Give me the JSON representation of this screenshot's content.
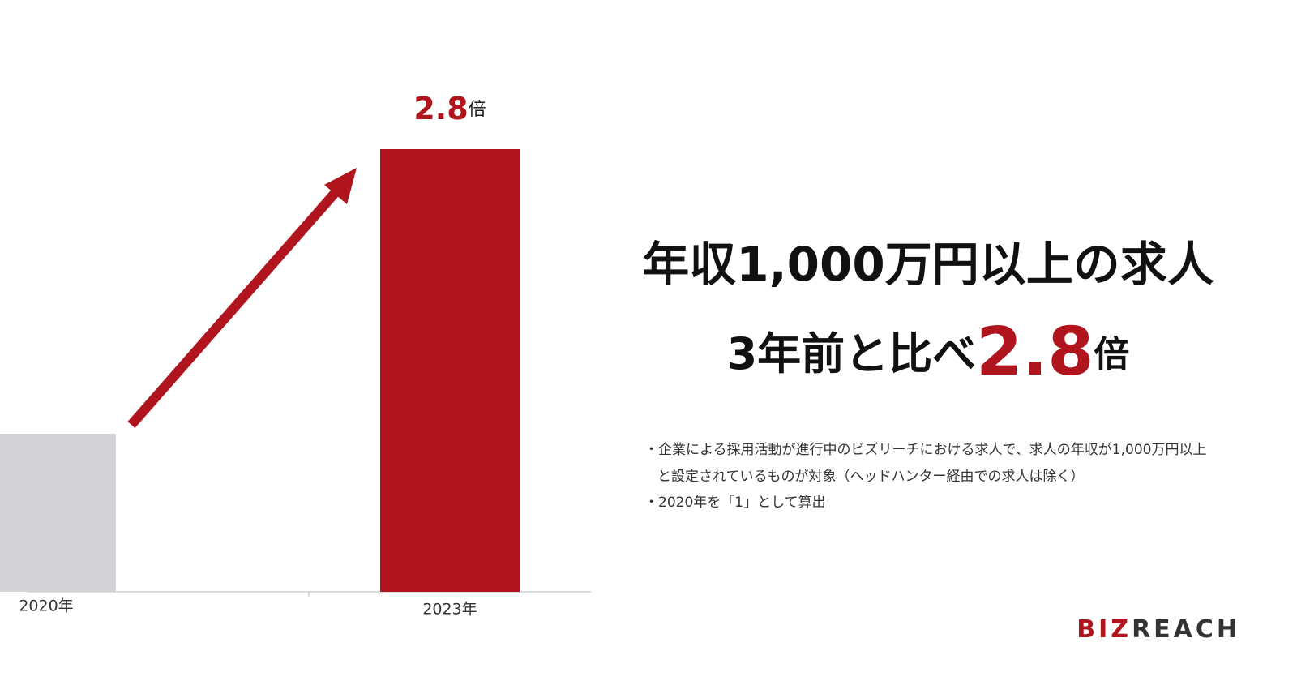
{
  "chart_data": {
    "type": "bar",
    "categories": [
      "2020年",
      "2023年"
    ],
    "values": [
      1,
      2.8
    ],
    "value_labels": [
      null,
      "2.8倍"
    ],
    "colors": [
      "#d3d3d5",
      "#b0141c"
    ],
    "ylim": [
      0,
      3
    ]
  },
  "headline": {
    "line1": "年収1,000万円以上の求人",
    "line2_prefix": "3年前と比べ",
    "line2_highlight": "2.8",
    "line2_suffix": "倍"
  },
  "notes": [
    "・企業による採用活動が進行中のビズリーチにおける求人で、求人の年収が1,000万円以上",
    "と設定されているものが対象（ヘッドハンター経由での求人は除く）",
    "・2020年を「1」として算出"
  ],
  "logo": {
    "accent": "BIZ",
    "rest": "REACH"
  }
}
